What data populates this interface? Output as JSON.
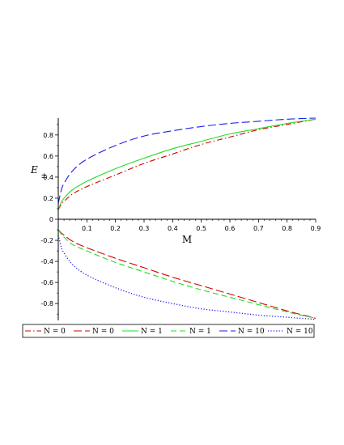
{
  "chart_data": {
    "type": "line",
    "xlabel": "M",
    "ylabel_main": "E",
    "ylabel_sub": "±",
    "xlim": [
      0,
      0.9
    ],
    "ylim": [
      -0.96,
      0.96
    ],
    "x_ticks": [
      0.1,
      0.2,
      0.3,
      0.4,
      0.5,
      0.6,
      0.7,
      0.8,
      0.9
    ],
    "x_tick_labels": [
      "0.1",
      "0.2",
      "0.3",
      "0.4",
      "0.5",
      "0.6",
      "0.7",
      "0.8",
      "0.9"
    ],
    "y_ticks": [
      0.8,
      0.6,
      0.4,
      0.2,
      0,
      -0.2,
      -0.4,
      -0.6,
      -0.8
    ],
    "y_tick_labels": [
      "0.8",
      "0.6",
      "0.4",
      "0.2",
      "0",
      "-0.2",
      "-0.4",
      "-0.6",
      "-0.8"
    ],
    "grid": false,
    "legend_position": "bottom",
    "x": [
      0,
      0.01,
      0.02,
      0.05,
      0.1,
      0.2,
      0.3,
      0.4,
      0.5,
      0.6,
      0.7,
      0.8,
      0.9
    ],
    "series": [
      {
        "name": "N = 0",
        "color": "#d40000",
        "dash": "dashdot",
        "values": [
          0.09,
          0.14,
          0.17,
          0.24,
          0.31,
          0.42,
          0.53,
          0.62,
          0.71,
          0.78,
          0.85,
          0.9,
          0.95
        ]
      },
      {
        "name": "N = 0",
        "color": "#d40000",
        "dash": "longdash",
        "values": [
          -0.1,
          -0.13,
          -0.15,
          -0.21,
          -0.27,
          -0.37,
          -0.46,
          -0.55,
          -0.63,
          -0.71,
          -0.79,
          -0.87,
          -0.94
        ]
      },
      {
        "name": "N = 1",
        "color": "#22dd22",
        "dash": "solid",
        "values": [
          0.09,
          0.16,
          0.2,
          0.28,
          0.36,
          0.48,
          0.58,
          0.67,
          0.74,
          0.81,
          0.86,
          0.91,
          0.95
        ]
      },
      {
        "name": "N = 1",
        "color": "#22dd22",
        "dash": "dash",
        "values": [
          -0.1,
          -0.14,
          -0.17,
          -0.24,
          -0.3,
          -0.41,
          -0.5,
          -0.59,
          -0.67,
          -0.74,
          -0.81,
          -0.88,
          -0.94
        ]
      },
      {
        "name": "N = 10",
        "color": "#1a1aee",
        "dash": "longdash",
        "values": [
          0.15,
          0.27,
          0.34,
          0.46,
          0.57,
          0.7,
          0.79,
          0.84,
          0.88,
          0.91,
          0.93,
          0.95,
          0.96
        ]
      },
      {
        "name": "N = 10",
        "color": "#1a1aee",
        "dash": "dot",
        "values": [
          -0.15,
          -0.26,
          -0.32,
          -0.43,
          -0.53,
          -0.65,
          -0.74,
          -0.8,
          -0.85,
          -0.88,
          -0.91,
          -0.93,
          -0.95
        ]
      }
    ]
  }
}
